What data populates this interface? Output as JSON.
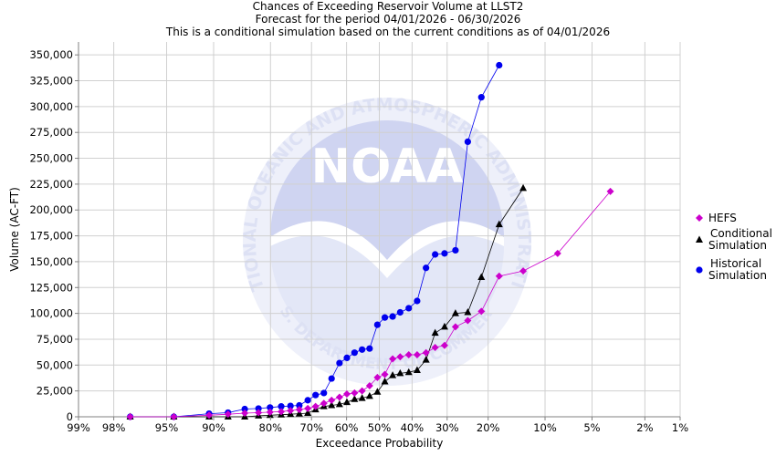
{
  "titles": {
    "line1": "Chances of Exceeding Reservoir Volume at LLST2",
    "line2": "Forecast for the period 04/01/2026 - 06/30/2026",
    "line3": "This is a conditional simulation based on the current conditions as of 04/01/2026"
  },
  "watermark": {
    "logo_text": "NOAA",
    "ring_top": "NATIONAL OCEANIC AND ATMOSPHERIC ADMINISTRATION",
    "ring_bottom": "U.S. DEPARTMENT OF COMMERCE"
  },
  "chart_data": {
    "type": "line",
    "title": "Chances of Exceeding Reservoir Volume at LLST2",
    "xlabel": "Exceedance Probability",
    "ylabel": "Volume (AC-FT)",
    "x_scale": "normal-probability",
    "x_direction": "decreasing",
    "xlim_percent": [
      99,
      1
    ],
    "ylim": [
      0,
      362500
    ],
    "grid": true,
    "legend_position": "right",
    "x_ticks": [
      {
        "p": 99,
        "label": "99%"
      },
      {
        "p": 98,
        "label": "98%"
      },
      {
        "p": 95,
        "label": "95%"
      },
      {
        "p": 90,
        "label": "90%"
      },
      {
        "p": 80,
        "label": "80%"
      },
      {
        "p": 70,
        "label": "70%"
      },
      {
        "p": 60,
        "label": "60%"
      },
      {
        "p": 50,
        "label": "50%"
      },
      {
        "p": 40,
        "label": "40%"
      },
      {
        "p": 30,
        "label": "30%"
      },
      {
        "p": 20,
        "label": "20%"
      },
      {
        "p": 10,
        "label": "10%"
      },
      {
        "p": 5,
        "label": "5%"
      },
      {
        "p": 2,
        "label": "2%"
      },
      {
        "p": 1,
        "label": "1%"
      }
    ],
    "y_ticks": [
      {
        "v": 0,
        "label": "0"
      },
      {
        "v": 25000,
        "label": "25,000"
      },
      {
        "v": 50000,
        "label": "50,000"
      },
      {
        "v": 75000,
        "label": "75,000"
      },
      {
        "v": 100000,
        "label": "100,000"
      },
      {
        "v": 125000,
        "label": "125,000"
      },
      {
        "v": 150000,
        "label": "150,000"
      },
      {
        "v": 175000,
        "label": "175,000"
      },
      {
        "v": 200000,
        "label": "200,000"
      },
      {
        "v": 225000,
        "label": "225,000"
      },
      {
        "v": 250000,
        "label": "250,000"
      },
      {
        "v": 275000,
        "label": "275,000"
      },
      {
        "v": 300000,
        "label": "300,000"
      },
      {
        "v": 325000,
        "label": "325,000"
      },
      {
        "v": 350000,
        "label": "350,000"
      }
    ],
    "series": [
      {
        "name": "HEFS",
        "color": "#cc00cc",
        "marker": "diamond",
        "points": [
          [
            97.3,
            0
          ],
          [
            94.4,
            0
          ],
          [
            90.6,
            1500
          ],
          [
            87.9,
            2500
          ],
          [
            85.1,
            3500
          ],
          [
            82.5,
            4000
          ],
          [
            80.1,
            4500
          ],
          [
            77.6,
            5000
          ],
          [
            75.4,
            6000
          ],
          [
            73.2,
            7000
          ],
          [
            71.0,
            8000
          ],
          [
            68.9,
            10000
          ],
          [
            66.6,
            13000
          ],
          [
            64.4,
            16000
          ],
          [
            62.1,
            19000
          ],
          [
            59.9,
            22000
          ],
          [
            57.6,
            23000
          ],
          [
            55.3,
            25000
          ],
          [
            53.0,
            30000
          ],
          [
            50.6,
            38000
          ],
          [
            48.3,
            41000
          ],
          [
            45.9,
            56000
          ],
          [
            43.6,
            58000
          ],
          [
            41.0,
            60000
          ],
          [
            38.5,
            60000
          ],
          [
            35.9,
            62000
          ],
          [
            33.3,
            67000
          ],
          [
            30.7,
            69000
          ],
          [
            27.8,
            87000
          ],
          [
            24.7,
            93000
          ],
          [
            21.5,
            102000
          ],
          [
            17.7,
            136000
          ],
          [
            13.3,
            141000
          ],
          [
            8.4,
            158000
          ],
          [
            3.7,
            218000
          ]
        ]
      },
      {
        "name": "Conditional Simulation",
        "color": "#000000",
        "marker": "triangle",
        "points": [
          [
            97.3,
            0
          ],
          [
            94.4,
            0
          ],
          [
            90.6,
            0
          ],
          [
            87.9,
            0
          ],
          [
            85.1,
            0
          ],
          [
            82.5,
            1000
          ],
          [
            80.1,
            1500
          ],
          [
            77.6,
            2000
          ],
          [
            75.4,
            2500
          ],
          [
            73.2,
            3000
          ],
          [
            71.0,
            3500
          ],
          [
            68.9,
            7000
          ],
          [
            66.6,
            10000
          ],
          [
            64.4,
            11000
          ],
          [
            62.1,
            12000
          ],
          [
            59.9,
            14000
          ],
          [
            57.6,
            17000
          ],
          [
            55.3,
            18000
          ],
          [
            53.0,
            20000
          ],
          [
            50.6,
            24000
          ],
          [
            48.3,
            34000
          ],
          [
            45.9,
            40000
          ],
          [
            43.6,
            42000
          ],
          [
            41.0,
            43000
          ],
          [
            38.5,
            45000
          ],
          [
            35.9,
            55000
          ],
          [
            33.3,
            81000
          ],
          [
            30.7,
            87000
          ],
          [
            27.8,
            100000
          ],
          [
            24.7,
            101000
          ],
          [
            21.5,
            135000
          ],
          [
            17.7,
            186000
          ],
          [
            13.3,
            221000
          ]
        ]
      },
      {
        "name": "Historical Simulation",
        "color": "#0000ee",
        "marker": "circle",
        "points": [
          [
            97.3,
            0
          ],
          [
            94.4,
            0
          ],
          [
            90.6,
            3000
          ],
          [
            87.9,
            4000
          ],
          [
            85.1,
            7500
          ],
          [
            82.5,
            8000
          ],
          [
            80.1,
            9000
          ],
          [
            77.6,
            10000
          ],
          [
            75.4,
            10500
          ],
          [
            73.2,
            11000
          ],
          [
            71.0,
            16000
          ],
          [
            68.9,
            21000
          ],
          [
            66.6,
            23000
          ],
          [
            64.4,
            37000
          ],
          [
            62.1,
            52000
          ],
          [
            59.9,
            57000
          ],
          [
            57.6,
            62000
          ],
          [
            55.3,
            65000
          ],
          [
            53.0,
            66000
          ],
          [
            50.6,
            89000
          ],
          [
            48.3,
            96000
          ],
          [
            45.9,
            97000
          ],
          [
            43.6,
            101000
          ],
          [
            41.0,
            105000
          ],
          [
            38.5,
            112000
          ],
          [
            35.9,
            144000
          ],
          [
            33.3,
            157000
          ],
          [
            30.7,
            158000
          ],
          [
            27.8,
            161000
          ],
          [
            24.7,
            266000
          ],
          [
            21.5,
            309000
          ],
          [
            17.7,
            340000
          ]
        ]
      }
    ]
  },
  "legend": [
    {
      "lines": [
        "HEFS"
      ],
      "color": "#cc00cc",
      "marker": "diamond"
    },
    {
      "lines": [
        "Conditional",
        "Simulation"
      ],
      "color": "#000000",
      "marker": "triangle"
    },
    {
      "lines": [
        "Historical",
        "Simulation"
      ],
      "color": "#0000ee",
      "marker": "circle"
    }
  ]
}
